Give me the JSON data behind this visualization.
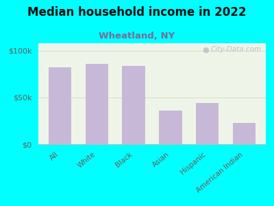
{
  "title": "Median household income in 2022",
  "subtitle": "Wheatland, NY",
  "categories": [
    "All",
    "White",
    "Black",
    "Asian",
    "Hispanic",
    "American Indian"
  ],
  "values": [
    82000,
    86000,
    84000,
    36000,
    44000,
    23000
  ],
  "bar_color": "#c8b8d8",
  "background_color": "#00ffff",
  "plot_bg_color": "#eef5e8",
  "title_fontsize": 12,
  "subtitle_fontsize": 9.5,
  "ylabel_ticks": [
    "$0",
    "$50k",
    "$100k"
  ],
  "ytick_vals": [
    0,
    50000,
    100000
  ],
  "ylim": [
    0,
    108000
  ],
  "watermark": "City-Data.com",
  "tick_label_color": "#6a5a5a",
  "subtitle_color": "#7a6a9a",
  "title_color": "#111111",
  "grid_color": "#d0d8c0"
}
